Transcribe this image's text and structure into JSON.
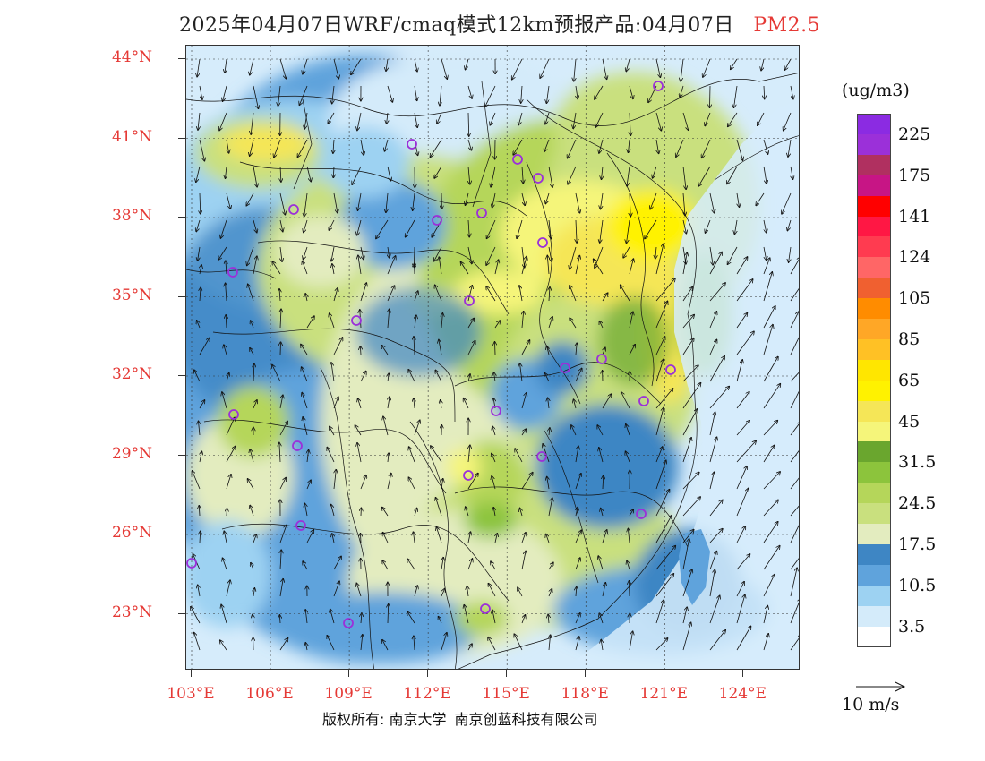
{
  "title": {
    "text": "2025年04月07日WRF/cmaq模式12km预报产品:04月07日",
    "pollutant": "PM2.5"
  },
  "axes": {
    "lat_labels": [
      "44°N",
      "41°N",
      "38°N",
      "35°N",
      "32°N",
      "29°N",
      "26°N",
      "23°N"
    ],
    "lon_labels": [
      "103°E",
      "106°E",
      "109°E",
      "112°E",
      "115°E",
      "118°E",
      "121°E",
      "124°E"
    ]
  },
  "legend": {
    "unit": "(ug/m3)",
    "levels": [
      {
        "color": "#8b2be2"
      },
      {
        "color": "#9b30d9"
      },
      {
        "color": "#b03060"
      },
      {
        "color": "#c71585"
      },
      {
        "color": "#ff0000"
      },
      {
        "color": "#ff1744"
      },
      {
        "color": "#ff3b50"
      },
      {
        "color": "#ff6666"
      },
      {
        "color": "#f06030"
      },
      {
        "color": "#ff8c00"
      },
      {
        "color": "#ffa726"
      },
      {
        "color": "#ffc125"
      },
      {
        "color": "#ffe600"
      },
      {
        "color": "#fff200"
      },
      {
        "color": "#f5e657"
      },
      {
        "color": "#f5f57a"
      },
      {
        "color": "#6aa62e"
      },
      {
        "color": "#8cc43c"
      },
      {
        "color": "#b5d65a"
      },
      {
        "color": "#c9e07e"
      },
      {
        "color": "#e3ecbf"
      },
      {
        "color": "#3e86c4"
      },
      {
        "color": "#5fa3dc"
      },
      {
        "color": "#9dd2f2"
      },
      {
        "color": "#d4ebfa"
      },
      {
        "color": "#ffffff"
      }
    ],
    "labels": [
      "225",
      "175",
      "141",
      "124",
      "105",
      "85",
      "65",
      "45",
      "31.5",
      "24.5",
      "17.5",
      "10.5",
      "3.5"
    ],
    "wind_reference": "10 m/s"
  },
  "copyright": {
    "part1": "版权所有: 南京大学",
    "part2": "南京创蓝科技有限公司"
  }
}
